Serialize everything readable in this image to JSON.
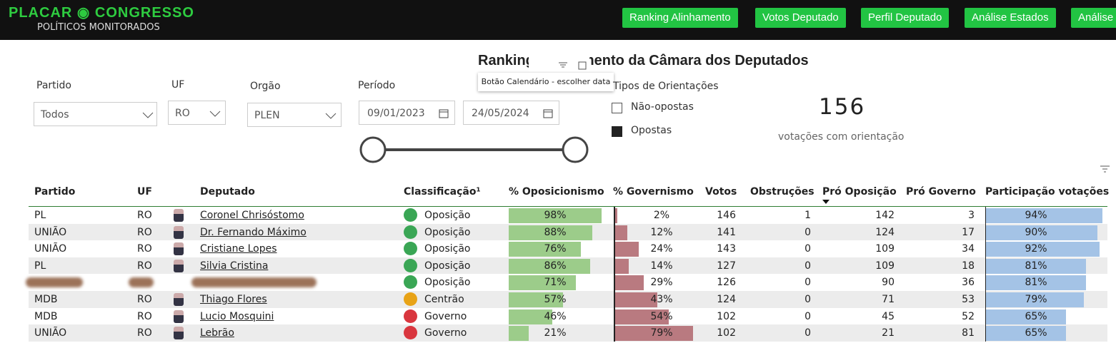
{
  "header": {
    "logo": "PLACAR ◉ CONGRESSO",
    "subtitle": "POLÍTICOS MONITORADOS",
    "nav": [
      "Ranking Alinhamento",
      "Votos Deputado",
      "Perfil Deputado",
      "Análise Estados",
      "Análise"
    ]
  },
  "title": "Ranking Alinhamento da Câmara dos Deputados",
  "tooltip": "Botão Calendário - escolher data",
  "filters": {
    "partido": {
      "label": "Partido",
      "value": "Todos"
    },
    "uf": {
      "label": "UF",
      "value": "RO"
    },
    "orgao": {
      "label": "Orgão",
      "value": "PLEN"
    },
    "periodo": {
      "label": "Período",
      "start": "09/01/2023",
      "end": "24/05/2024"
    }
  },
  "orientacoes": {
    "label": "Tipos de Orientações",
    "options": [
      "Não-opostas",
      "Opostas"
    ]
  },
  "kpi": {
    "value": 156,
    "label": "votações com orientação"
  },
  "table": {
    "headers": [
      "Partido",
      "UF",
      "Deputado",
      "Classificação¹",
      "% Oposicionismo",
      "% Governismo",
      "Votos",
      "Obstruções",
      "Pró Oposição",
      "Pró Governo",
      "Participação votações"
    ],
    "rows": [
      {
        "partido": "PL",
        "uf": "RO",
        "deputado": "Coronel Chrisóstomo",
        "classificacao": "Oposição",
        "icon_color": "#3aa655",
        "oposicionismo": {
          "value": 98,
          "label": "98%"
        },
        "governismo": {
          "value": 2,
          "label": "2%"
        },
        "votos": 146,
        "obstrucoes": 1,
        "pro_oposicao": 142,
        "pro_governo": 3,
        "participacao": {
          "value": 94,
          "label": "94%"
        }
      },
      {
        "partido": "UNIÃO",
        "uf": "RO",
        "deputado": "Dr. Fernando Máximo",
        "classificacao": "Oposição",
        "icon_color": "#3aa655",
        "oposicionismo": {
          "value": 88,
          "label": "88%"
        },
        "governismo": {
          "value": 12,
          "label": "12%"
        },
        "votos": 141,
        "obstrucoes": 0,
        "pro_oposicao": 124,
        "pro_governo": 17,
        "participacao": {
          "value": 90,
          "label": "90%"
        }
      },
      {
        "partido": "UNIÃO",
        "uf": "RO",
        "deputado": "Cristiane Lopes",
        "classificacao": "Oposição",
        "icon_color": "#3aa655",
        "oposicionismo": {
          "value": 76,
          "label": "76%"
        },
        "governismo": {
          "value": 24,
          "label": "24%"
        },
        "votos": 143,
        "obstrucoes": 0,
        "pro_oposicao": 109,
        "pro_governo": 34,
        "participacao": {
          "value": 92,
          "label": "92%"
        }
      },
      {
        "partido": "PL",
        "uf": "RO",
        "deputado": "Silvia Cristina",
        "classificacao": "Oposição",
        "icon_color": "#3aa655",
        "oposicionismo": {
          "value": 86,
          "label": "86%"
        },
        "governismo": {
          "value": 14,
          "label": "14%"
        },
        "votos": 127,
        "obstrucoes": 0,
        "pro_oposicao": 109,
        "pro_governo": 18,
        "participacao": {
          "value": 81,
          "label": "81%"
        }
      },
      {
        "partido": null,
        "uf": null,
        "deputado": null,
        "classificacao": "Oposição",
        "icon_color": "#3aa655",
        "oposicionismo": {
          "value": 71,
          "label": "71%"
        },
        "governismo": {
          "value": 29,
          "label": "29%"
        },
        "votos": 126,
        "obstrucoes": 0,
        "pro_oposicao": 90,
        "pro_governo": 36,
        "participacao": {
          "value": 81,
          "label": "81%"
        }
      },
      {
        "partido": "MDB",
        "uf": "RO",
        "deputado": "Thiago Flores",
        "classificacao": "Centrão",
        "icon_color": "#e8a317",
        "oposicionismo": {
          "value": 57,
          "label": "57%"
        },
        "governismo": {
          "value": 43,
          "label": "43%"
        },
        "votos": 124,
        "obstrucoes": 0,
        "pro_oposicao": 71,
        "pro_governo": 53,
        "participacao": {
          "value": 79,
          "label": "79%"
        }
      },
      {
        "partido": "MDB",
        "uf": "RO",
        "deputado": "Lucio Mosquini",
        "classificacao": "Governo",
        "icon_color": "#d9363e",
        "oposicionismo": {
          "value": 46,
          "label": "46%"
        },
        "governismo": {
          "value": 54,
          "label": "54%"
        },
        "votos": 102,
        "obstrucoes": 0,
        "pro_oposicao": 45,
        "pro_governo": 52,
        "participacao": {
          "value": 65,
          "label": "65%"
        }
      },
      {
        "partido": "UNIÃO",
        "uf": "RO",
        "deputado": "Lebrão",
        "classificacao": "Governo",
        "icon_color": "#d9363e",
        "oposicionismo": {
          "value": 21,
          "label": "21%"
        },
        "governismo": {
          "value": 79,
          "label": "79%"
        },
        "votos": 102,
        "obstrucoes": 0,
        "pro_oposicao": 21,
        "pro_governo": 81,
        "participacao": {
          "value": 65,
          "label": "65%"
        }
      }
    ]
  }
}
